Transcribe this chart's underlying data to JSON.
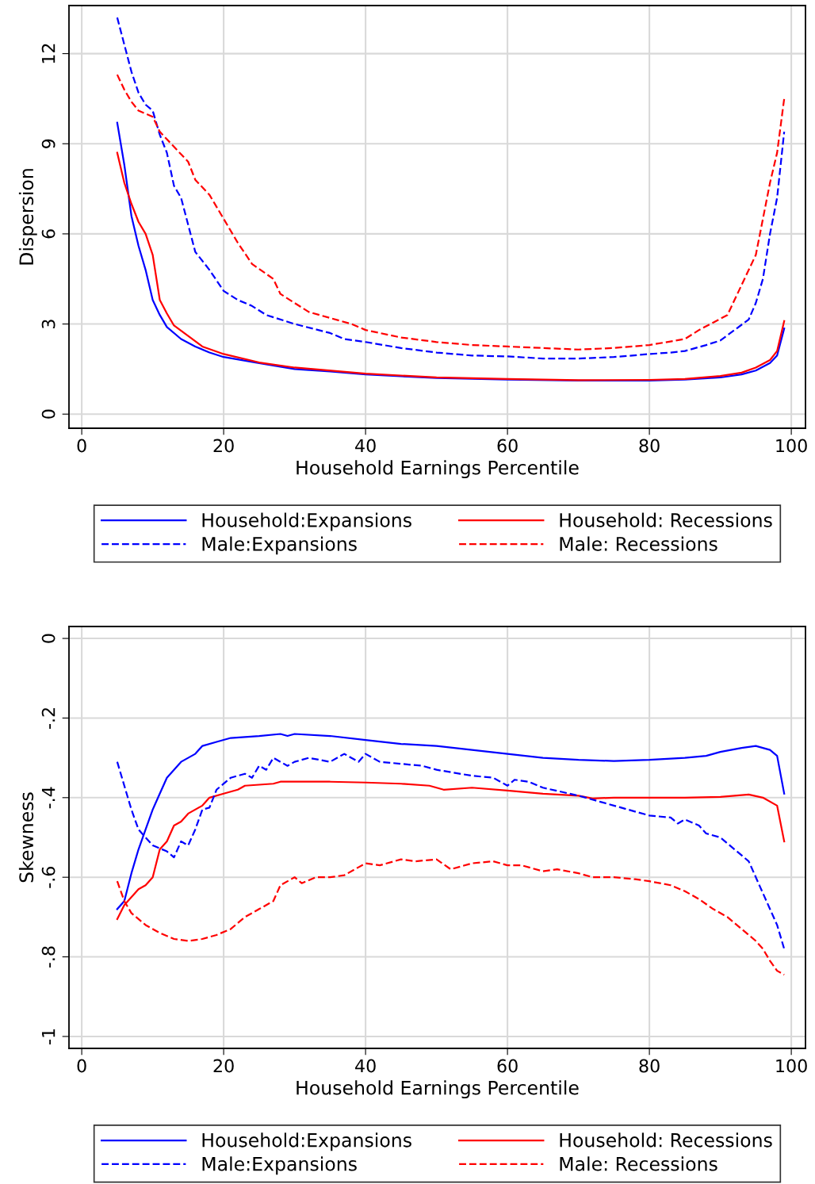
{
  "chart_data": [
    {
      "type": "line",
      "xlabel": "Household Earnings Percentile",
      "ylabel": "Dispersion",
      "xlim": [
        -1.8,
        102
      ],
      "xticks": [
        0,
        20,
        40,
        60,
        80,
        100
      ],
      "ylim": [
        -0.47,
        13.6
      ],
      "yticks": [
        0,
        3,
        6,
        9,
        12
      ],
      "grid": true,
      "legend": "bottom",
      "series": [
        {
          "name": "Household:Expansions",
          "color": "#0000ff",
          "line_style": "solid",
          "x": [
            5,
            6,
            7,
            8,
            9,
            10,
            11,
            12,
            14,
            16,
            18,
            20,
            25,
            30,
            35,
            40,
            50,
            60,
            70,
            80,
            85,
            90,
            93,
            95,
            97,
            98,
            99
          ],
          "values": [
            9.7,
            8.3,
            6.6,
            5.6,
            4.8,
            3.8,
            3.3,
            2.9,
            2.5,
            2.25,
            2.05,
            1.9,
            1.7,
            1.5,
            1.42,
            1.32,
            1.2,
            1.15,
            1.12,
            1.12,
            1.15,
            1.22,
            1.32,
            1.45,
            1.7,
            1.95,
            2.85
          ]
        },
        {
          "name": "Household: Recessions",
          "color": "#ff0000",
          "line_style": "solid",
          "x": [
            5,
            6,
            7,
            8,
            9,
            10,
            11,
            12,
            13,
            15,
            17,
            20,
            25,
            30,
            40,
            50,
            60,
            70,
            80,
            85,
            90,
            93,
            95,
            97,
            98,
            99
          ],
          "values": [
            8.7,
            7.7,
            7.0,
            6.4,
            6.0,
            5.3,
            3.8,
            3.35,
            2.95,
            2.6,
            2.25,
            2.0,
            1.72,
            1.55,
            1.35,
            1.22,
            1.17,
            1.13,
            1.14,
            1.17,
            1.27,
            1.38,
            1.55,
            1.8,
            2.1,
            3.1
          ]
        },
        {
          "name": "Male:Expansions",
          "color": "#0000ff",
          "line_style": "dashed",
          "x": [
            5,
            6,
            7,
            8,
            9,
            10,
            11,
            12,
            13,
            14,
            15,
            16,
            18,
            20,
            22,
            24,
            26,
            30,
            35,
            37,
            40,
            45,
            50,
            55,
            60,
            65,
            70,
            75,
            80,
            83,
            85,
            88,
            90,
            92,
            94,
            95,
            96,
            97,
            98,
            99
          ],
          "values": [
            13.2,
            12.3,
            11.4,
            10.7,
            10.3,
            10.1,
            9.3,
            8.7,
            7.6,
            7.2,
            6.3,
            5.4,
            4.8,
            4.1,
            3.8,
            3.6,
            3.3,
            3.0,
            2.7,
            2.5,
            2.4,
            2.2,
            2.05,
            1.95,
            1.92,
            1.85,
            1.85,
            1.9,
            2.0,
            2.05,
            2.1,
            2.3,
            2.45,
            2.8,
            3.15,
            3.7,
            4.5,
            6.0,
            7.2,
            9.4
          ]
        },
        {
          "name": "Male: Recessions",
          "color": "#ff0000",
          "line_style": "dashed",
          "x": [
            5,
            6,
            7,
            8,
            10,
            11,
            13,
            15,
            16,
            18,
            20,
            22,
            24,
            27,
            28,
            30,
            32,
            35,
            38,
            40,
            45,
            50,
            55,
            60,
            65,
            70,
            75,
            80,
            85,
            87,
            89,
            91,
            93,
            95,
            96,
            97,
            98,
            99
          ],
          "values": [
            11.3,
            10.8,
            10.4,
            10.1,
            9.9,
            9.4,
            8.9,
            8.4,
            7.8,
            7.3,
            6.5,
            5.7,
            5.0,
            4.5,
            4.0,
            3.7,
            3.4,
            3.2,
            3.0,
            2.8,
            2.55,
            2.4,
            2.3,
            2.25,
            2.2,
            2.15,
            2.2,
            2.3,
            2.5,
            2.8,
            3.05,
            3.3,
            4.3,
            5.3,
            6.5,
            7.7,
            8.7,
            10.5
          ]
        }
      ]
    },
    {
      "type": "line",
      "xlabel": "Household Earnings Percentile",
      "ylabel": "Skewness",
      "xlim": [
        -1.8,
        102
      ],
      "xticks": [
        0,
        20,
        40,
        60,
        80,
        100
      ],
      "ylim": [
        -1.03,
        0.03
      ],
      "yticks": [
        {
          "value": -1,
          "label": "-1"
        },
        {
          "value": -0.8,
          "label": "-.8"
        },
        {
          "value": -0.6,
          "label": "-.6"
        },
        {
          "value": -0.4,
          "label": "-.4"
        },
        {
          "value": -0.2,
          "label": "-.2"
        },
        0
      ],
      "grid": true,
      "legend": "bottom",
      "series": [
        {
          "name": "Household:Expansions",
          "color": "#0000ff",
          "line_style": "solid",
          "x": [
            5,
            6,
            7,
            8,
            9,
            10,
            11,
            12,
            13,
            14,
            16,
            17,
            19,
            21,
            25,
            28,
            29,
            30,
            35,
            40,
            45,
            50,
            55,
            60,
            65,
            70,
            75,
            80,
            85,
            88,
            90,
            93,
            95,
            97,
            98,
            99
          ],
          "values": [
            -0.68,
            -0.66,
            -0.59,
            -0.53,
            -0.48,
            -0.43,
            -0.39,
            -0.35,
            -0.33,
            -0.31,
            -0.29,
            -0.27,
            -0.26,
            -0.25,
            -0.245,
            -0.24,
            -0.245,
            -0.24,
            -0.245,
            -0.255,
            -0.265,
            -0.27,
            -0.28,
            -0.29,
            -0.3,
            -0.305,
            -0.308,
            -0.305,
            -0.3,
            -0.295,
            -0.285,
            -0.275,
            -0.27,
            -0.28,
            -0.295,
            -0.39
          ]
        },
        {
          "name": "Household: Recessions",
          "color": "#ff0000",
          "line_style": "solid",
          "x": [
            5,
            6,
            7,
            8,
            9,
            10,
            11,
            12,
            13,
            14,
            15,
            17,
            18,
            20,
            22,
            23,
            27,
            28,
            30,
            35,
            40,
            45,
            49,
            51,
            55,
            60,
            65,
            70,
            72,
            75,
            80,
            85,
            90,
            94,
            96,
            98,
            99
          ],
          "values": [
            -0.705,
            -0.67,
            -0.65,
            -0.63,
            -0.62,
            -0.6,
            -0.53,
            -0.51,
            -0.47,
            -0.46,
            -0.44,
            -0.42,
            -0.4,
            -0.39,
            -0.38,
            -0.37,
            -0.365,
            -0.36,
            -0.36,
            -0.36,
            -0.362,
            -0.365,
            -0.37,
            -0.38,
            -0.375,
            -0.382,
            -0.39,
            -0.395,
            -0.402,
            -0.4,
            -0.4,
            -0.4,
            -0.398,
            -0.392,
            -0.4,
            -0.42,
            -0.51
          ]
        },
        {
          "name": "Male:Expansions",
          "color": "#0000ff",
          "line_style": "dashed",
          "x": [
            5,
            6,
            7,
            8,
            10,
            12,
            13,
            14,
            15,
            16,
            17,
            18,
            19,
            21,
            23,
            24,
            25,
            26,
            27,
            29,
            30,
            32,
            35,
            37,
            39,
            40,
            42,
            45,
            48,
            50,
            55,
            58,
            60,
            61,
            63,
            65,
            70,
            73,
            75,
            80,
            83,
            84,
            85,
            87,
            88,
            90,
            92,
            94,
            96,
            98,
            99
          ],
          "values": [
            -0.31,
            -0.37,
            -0.43,
            -0.48,
            -0.52,
            -0.535,
            -0.55,
            -0.51,
            -0.52,
            -0.48,
            -0.43,
            -0.425,
            -0.38,
            -0.35,
            -0.34,
            -0.35,
            -0.32,
            -0.33,
            -0.3,
            -0.32,
            -0.31,
            -0.3,
            -0.31,
            -0.29,
            -0.31,
            -0.29,
            -0.31,
            -0.315,
            -0.32,
            -0.33,
            -0.345,
            -0.35,
            -0.37,
            -0.355,
            -0.36,
            -0.375,
            -0.395,
            -0.41,
            -0.42,
            -0.445,
            -0.45,
            -0.465,
            -0.455,
            -0.47,
            -0.49,
            -0.5,
            -0.53,
            -0.56,
            -0.64,
            -0.72,
            -0.78
          ]
        },
        {
          "name": "Male: Recessions",
          "color": "#ff0000",
          "line_style": "dashed",
          "x": [
            5,
            6,
            7,
            9,
            11,
            13,
            15,
            17,
            19,
            21,
            23,
            25,
            27,
            28,
            30,
            31,
            33,
            35,
            37,
            39,
            40,
            42,
            45,
            47,
            50,
            52,
            55,
            58,
            60,
            62,
            65,
            67,
            70,
            72,
            75,
            78,
            80,
            83,
            85,
            87,
            89,
            91,
            93,
            95,
            96,
            97,
            98,
            99
          ],
          "values": [
            -0.61,
            -0.66,
            -0.69,
            -0.72,
            -0.74,
            -0.755,
            -0.76,
            -0.755,
            -0.745,
            -0.73,
            -0.7,
            -0.68,
            -0.66,
            -0.62,
            -0.6,
            -0.615,
            -0.6,
            -0.6,
            -0.595,
            -0.575,
            -0.565,
            -0.57,
            -0.555,
            -0.56,
            -0.555,
            -0.58,
            -0.565,
            -0.56,
            -0.57,
            -0.57,
            -0.585,
            -0.58,
            -0.59,
            -0.6,
            -0.6,
            -0.605,
            -0.61,
            -0.62,
            -0.635,
            -0.655,
            -0.68,
            -0.7,
            -0.73,
            -0.76,
            -0.78,
            -0.81,
            -0.835,
            -0.845
          ]
        }
      ]
    }
  ]
}
